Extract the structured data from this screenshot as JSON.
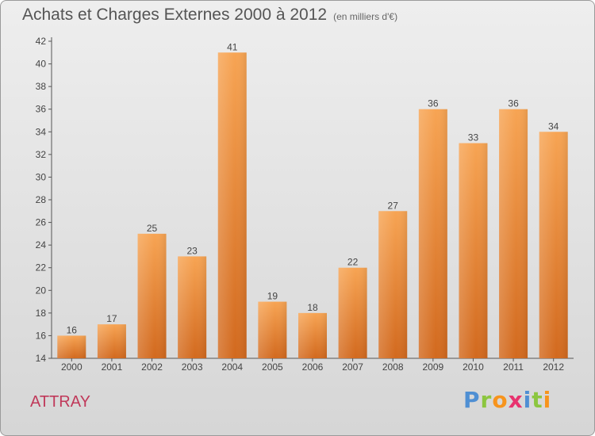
{
  "header": {
    "title": "Achats et Charges Externes 2000 à 2012",
    "subtitle": "(en milliers d'€)"
  },
  "location": "ATTRAY",
  "logo": {
    "text": "Proxiti",
    "letters": [
      {
        "char": "P",
        "color": "#4f8fd3"
      },
      {
        "char": "r",
        "color": "#8cc63f"
      },
      {
        "char": "o",
        "color": "#f7941d"
      },
      {
        "char": "x",
        "color": "#e8336f"
      },
      {
        "char": "i",
        "color": "#4f8fd3"
      },
      {
        "char": "t",
        "color": "#8cc63f"
      },
      {
        "char": "i",
        "color": "#f7941d"
      }
    ]
  },
  "chart_data": {
    "type": "bar",
    "title": "Achats et Charges Externes 2000 à 2012",
    "subtitle": "(en milliers d'€)",
    "categories": [
      "2000",
      "2001",
      "2002",
      "2003",
      "2004",
      "2005",
      "2006",
      "2007",
      "2008",
      "2009",
      "2010",
      "2011",
      "2012"
    ],
    "values": [
      16,
      17,
      25,
      23,
      41,
      19,
      18,
      22,
      27,
      36,
      33,
      36,
      34
    ],
    "ylim": [
      14,
      42
    ],
    "yticks": [
      14,
      16,
      18,
      20,
      22,
      24,
      26,
      28,
      30,
      32,
      34,
      36,
      38,
      40,
      42
    ],
    "xlabel": "",
    "ylabel": "",
    "grid": false,
    "bar_color_top": "#f7a453",
    "bar_color_bottom": "#d2691e"
  }
}
